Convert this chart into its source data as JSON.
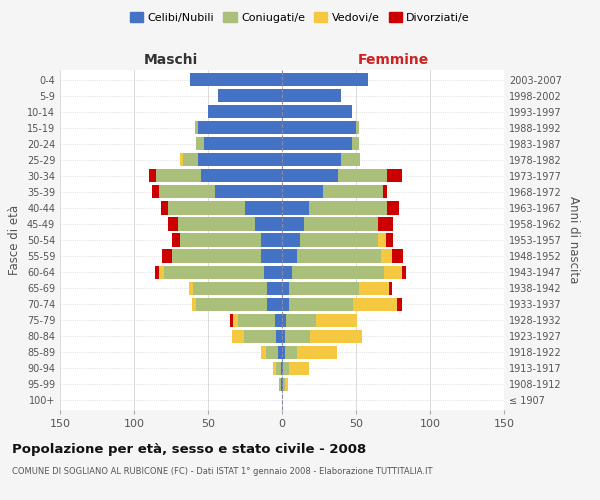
{
  "age_groups": [
    "100+",
    "95-99",
    "90-94",
    "85-89",
    "80-84",
    "75-79",
    "70-74",
    "65-69",
    "60-64",
    "55-59",
    "50-54",
    "45-49",
    "40-44",
    "35-39",
    "30-34",
    "25-29",
    "20-24",
    "15-19",
    "10-14",
    "5-9",
    "0-4"
  ],
  "birth_years": [
    "≤ 1907",
    "1908-1912",
    "1913-1917",
    "1918-1922",
    "1923-1927",
    "1928-1932",
    "1933-1937",
    "1938-1942",
    "1943-1947",
    "1948-1952",
    "1953-1957",
    "1958-1962",
    "1963-1967",
    "1968-1972",
    "1973-1977",
    "1978-1982",
    "1983-1987",
    "1988-1992",
    "1993-1997",
    "1998-2002",
    "2003-2007"
  ],
  "males": {
    "celibi": [
      0,
      1,
      1,
      3,
      4,
      5,
      10,
      10,
      12,
      14,
      14,
      18,
      25,
      45,
      55,
      57,
      53,
      57,
      50,
      43,
      62
    ],
    "coniugati": [
      0,
      1,
      3,
      8,
      22,
      25,
      48,
      50,
      68,
      60,
      55,
      52,
      52,
      38,
      30,
      10,
      5,
      2,
      0,
      0,
      0
    ],
    "vedovi": [
      0,
      0,
      2,
      3,
      8,
      3,
      3,
      3,
      3,
      0,
      0,
      0,
      0,
      0,
      0,
      2,
      0,
      0,
      0,
      0,
      0
    ],
    "divorziati": [
      0,
      0,
      0,
      0,
      0,
      2,
      0,
      0,
      3,
      7,
      5,
      7,
      5,
      5,
      5,
      0,
      0,
      0,
      0,
      0,
      0
    ]
  },
  "females": {
    "nubili": [
      0,
      1,
      1,
      2,
      2,
      3,
      5,
      5,
      7,
      10,
      12,
      15,
      18,
      28,
      38,
      40,
      47,
      50,
      47,
      40,
      58
    ],
    "coniugate": [
      0,
      1,
      4,
      8,
      17,
      20,
      43,
      47,
      62,
      57,
      53,
      50,
      53,
      40,
      33,
      13,
      5,
      2,
      0,
      0,
      0
    ],
    "vedove": [
      0,
      2,
      13,
      27,
      35,
      28,
      30,
      20,
      12,
      7,
      5,
      0,
      0,
      0,
      0,
      0,
      0,
      0,
      0,
      0,
      0
    ],
    "divorziate": [
      0,
      0,
      0,
      0,
      0,
      0,
      3,
      2,
      3,
      8,
      5,
      10,
      8,
      3,
      10,
      0,
      0,
      0,
      0,
      0,
      0
    ]
  },
  "colors": {
    "celibi": "#4472C4",
    "coniugati": "#AABF7A",
    "vedovi": "#F5C842",
    "divorziati": "#CC0000"
  },
  "xlim": 150,
  "xtick_step": 50,
  "title": "Popolazione per età, sesso e stato civile - 2008",
  "subtitle": "COMUNE DI SOGLIANO AL RUBICONE (FC) - Dati ISTAT 1° gennaio 2008 - Elaborazione TUTTITALIA.IT",
  "ylabel_left": "Fasce di età",
  "ylabel_right": "Anni di nascita",
  "xlabel_left": "Maschi",
  "xlabel_right": "Femmine",
  "legend_labels": [
    "Celibi/Nubili",
    "Coniugati/e",
    "Vedovi/e",
    "Divorziati/e"
  ],
  "bg_color": "#f5f5f5",
  "plot_bg": "#ffffff",
  "bar_height": 0.82,
  "legend_marker_size": 10
}
